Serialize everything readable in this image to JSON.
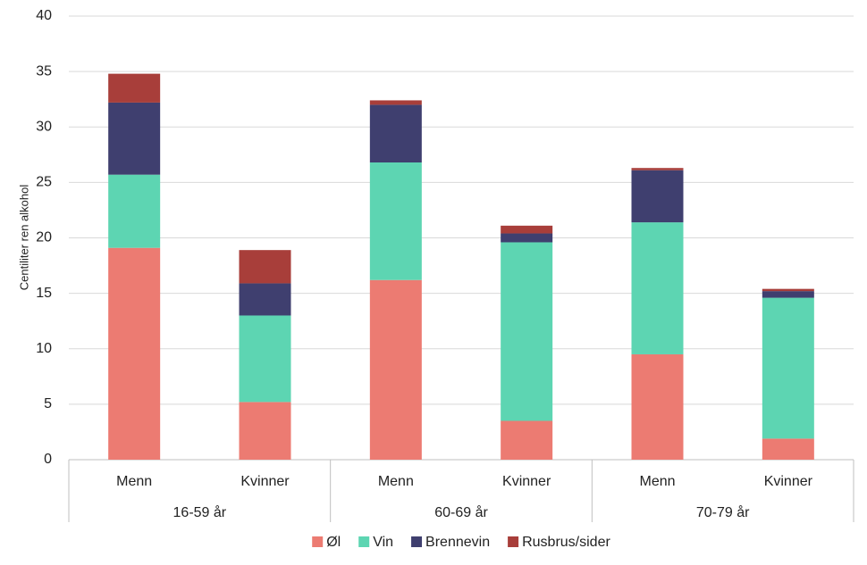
{
  "chart_data": {
    "type": "stacked_bar",
    "y_label": "Centiliter ren alkohol",
    "categories": [
      "Menn",
      "Kvinner",
      "Menn",
      "Kvinner",
      "Menn",
      "Kvinner"
    ],
    "groups": [
      "16-59 år",
      "60-69 år",
      "70-79 år"
    ],
    "series": [
      {
        "name": "Øl",
        "color": "#ec7b72",
        "values": [
          19.1,
          5.2,
          16.2,
          3.5,
          9.5,
          1.9
        ]
      },
      {
        "name": "Vin",
        "color": "#5dd5b2",
        "values": [
          6.6,
          7.8,
          10.6,
          16.1,
          11.9,
          12.7
        ]
      },
      {
        "name": "Brennevin",
        "color": "#3f3f6f",
        "values": [
          6.5,
          2.9,
          5.2,
          0.8,
          4.7,
          0.6
        ]
      },
      {
        "name": "Rusbrus/sider",
        "color": "#a83e3a",
        "values": [
          2.6,
          3.0,
          0.4,
          0.7,
          0.2,
          0.2
        ]
      }
    ],
    "ylim": [
      0,
      40
    ],
    "yticks": [
      0,
      5,
      10,
      15,
      20,
      25,
      30,
      35,
      40
    ],
    "grid": true,
    "legend": "bottom"
  }
}
